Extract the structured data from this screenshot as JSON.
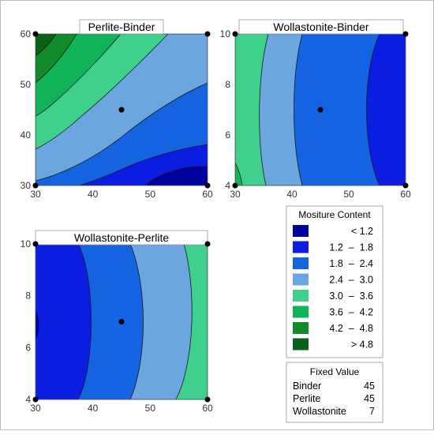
{
  "chart_data": [
    {
      "type": "contour",
      "title": "Perlite-Binder",
      "x_ticks": [
        "30",
        "40",
        "50",
        "60"
      ],
      "y_ticks": [
        "30",
        "40",
        "50",
        "60"
      ],
      "xlim": [
        30,
        60
      ],
      "ylim": [
        30,
        60
      ],
      "hold_point": [
        45,
        45
      ],
      "level_min": 1.2,
      "level_max": 4.8
    },
    {
      "type": "contour",
      "title": "Wollastonite-Binder",
      "x_ticks": [
        "30",
        "40",
        "50",
        "60"
      ],
      "y_ticks": [
        "4",
        "6",
        "8",
        "10"
      ],
      "xlim": [
        30,
        60
      ],
      "ylim": [
        4,
        10
      ],
      "hold_point": [
        45,
        7
      ],
      "level_min": 1.2,
      "level_max": 3.6
    },
    {
      "type": "contour",
      "title": "Wollastonite-Perlite",
      "x_ticks": [
        "30",
        "40",
        "50",
        "60"
      ],
      "y_ticks": [
        "4",
        "6",
        "8",
        "10"
      ],
      "xlim": [
        30,
        60
      ],
      "ylim": [
        4,
        10
      ],
      "hold_point": [
        45,
        7
      ],
      "level_min": 1.2,
      "level_max": 3.6
    }
  ],
  "legend": {
    "title": "Mositure Content",
    "bins": [
      {
        "label": "< 1.2",
        "color": "#00009e"
      },
      {
        "label": "1.2  –  1.8",
        "color": "#0b1de0"
      },
      {
        "label": "1.8  –  2.4",
        "color": "#1463e0"
      },
      {
        "label": "2.4  –  3.0",
        "color": "#6ba6df"
      },
      {
        "label": "3.0  –  3.6",
        "color": "#3fd08d"
      },
      {
        "label": "3.6  –  4.2",
        "color": "#10b35a"
      },
      {
        "label": "4.2  –  4.8",
        "color": "#0f8b2a"
      },
      {
        "label": "> 4.8",
        "color": "#0a6018"
      }
    ]
  },
  "fixed": {
    "title": "Fixed Value",
    "rows": [
      {
        "name": "Binder",
        "value": "45"
      },
      {
        "name": "Perlite",
        "value": "45"
      },
      {
        "name": "Wollastonite",
        "value": "7"
      }
    ]
  }
}
